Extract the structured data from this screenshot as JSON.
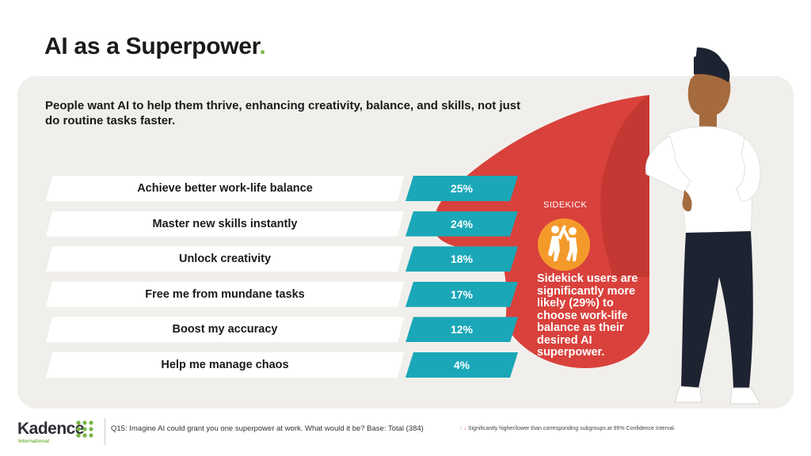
{
  "title": {
    "text": "AI as a Superpower",
    "dot": "."
  },
  "subtitle": "People want AI to help them thrive, enhancing creativity, balance, and skills, not just do routine tasks faster.",
  "chart_data": {
    "type": "bar",
    "orientation": "horizontal",
    "categories": [
      "Achieve better work-life balance",
      "Master new skills instantly",
      "Unlock creativity",
      "Free me from mundane tasks",
      "Boost my accuracy",
      "Help me manage chaos"
    ],
    "values": [
      25,
      24,
      18,
      17,
      12,
      4
    ],
    "value_labels": [
      "25%",
      "24%",
      "18%",
      "17%",
      "12%",
      "4%"
    ],
    "unit": "%"
  },
  "callout": {
    "label": "SIDEKICK",
    "icon": "high-five-icon",
    "text": "Sidekick users are significantly more likely (29%) to choose work-life balance as their desired AI superpower."
  },
  "footer": {
    "logo_name": "Kadence",
    "logo_sub": "International",
    "question": "Q15: Imagine AI could grant you one superpower at work. What would it be? Base: Total (384)",
    "sig_up": "↑",
    "sig_down": "↓",
    "significance": "Significantly higher/lower than corresponding subgroups at 95% Confidence Interval."
  },
  "colors": {
    "accent": "#7ab648",
    "bar": "#1aa7b8",
    "cape": "#d9413c",
    "sidekick": "#f49a2b",
    "panel": "#f1efec"
  }
}
